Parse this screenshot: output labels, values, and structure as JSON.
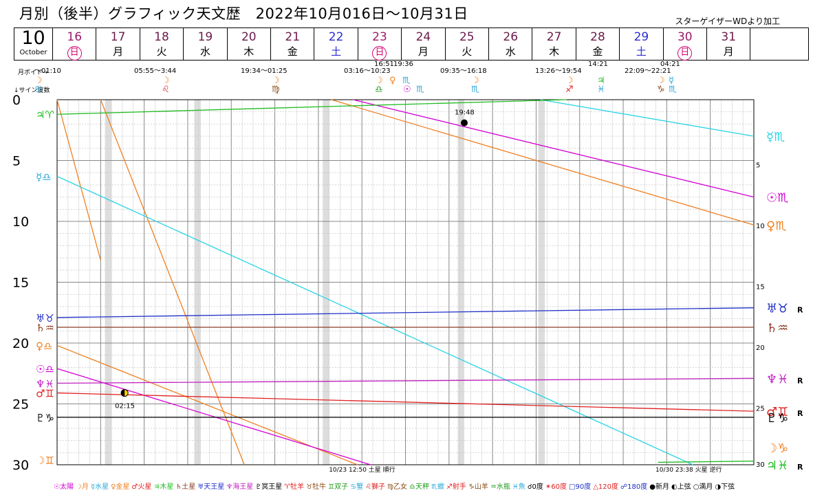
{
  "title": "月別（後半）グラフィック天文歴　2022年10月016日～10月31日",
  "credit": "スターゲイザーWDより加工",
  "header": {
    "month": "10",
    "month_name": "October",
    "days": [
      {
        "d": "16",
        "w": "日",
        "type": "sun"
      },
      {
        "d": "17",
        "w": "月",
        "type": "wd"
      },
      {
        "d": "18",
        "w": "火",
        "type": "wd"
      },
      {
        "d": "19",
        "w": "水",
        "type": "wd"
      },
      {
        "d": "20",
        "w": "木",
        "type": "wd"
      },
      {
        "d": "21",
        "w": "金",
        "type": "wd"
      },
      {
        "d": "22",
        "w": "土",
        "type": "sat"
      },
      {
        "d": "23",
        "w": "日",
        "type": "sun"
      },
      {
        "d": "24",
        "w": "月",
        "type": "wd"
      },
      {
        "d": "25",
        "w": "火",
        "type": "wd"
      },
      {
        "d": "26",
        "w": "水",
        "type": "wd"
      },
      {
        "d": "27",
        "w": "木",
        "type": "wd"
      },
      {
        "d": "28",
        "w": "金",
        "type": "wd"
      },
      {
        "d": "29",
        "w": "土",
        "type": "sat"
      },
      {
        "d": "30",
        "w": "日",
        "type": "sun"
      },
      {
        "d": "31",
        "w": "月",
        "type": "wd"
      }
    ]
  },
  "voids": {
    "label_void": "月ボイド→",
    "label_sign": "↓サイン度数",
    "items": [
      "～01:10",
      "05:55～3:44",
      "19:34～01:25",
      "03:16～10:23",
      "16:51",
      "19:36",
      "09:35～16:18",
      "13:26～19:54",
      "14:21",
      "22:09～22:21",
      "04:21"
    ]
  },
  "ingress_glyphs": [
    {
      "g": "☽",
      "c": "#f08020"
    },
    {
      "g": "♋",
      "c": "#2aa7d8"
    },
    {
      "g": "☽",
      "c": "#f08020"
    },
    {
      "g": "♌",
      "c": "#d33"
    },
    {
      "g": "☽",
      "c": "#f08020"
    },
    {
      "g": "♍",
      "c": "#8a4a12"
    },
    {
      "g": "☽",
      "c": "#f08020"
    },
    {
      "g": "♎",
      "c": "#1a9a1a"
    },
    {
      "g": "♀",
      "c": "#f08020"
    },
    {
      "g": "♏",
      "c": "#2aa7d8"
    },
    {
      "g": "☉",
      "c": "#d400d4"
    },
    {
      "g": "♏",
      "c": "#2aa7d8"
    },
    {
      "g": "☽",
      "c": "#f08020"
    },
    {
      "g": "♏",
      "c": "#2aa7d8"
    },
    {
      "g": "☽",
      "c": "#f08020"
    },
    {
      "g": "♐",
      "c": "#e02020"
    },
    {
      "g": "♃",
      "c": "#22bb22"
    },
    {
      "g": "♓",
      "c": "#2aa7d8"
    },
    {
      "g": "☽",
      "c": "#f08020"
    },
    {
      "g": "♑",
      "c": "#8a4a12"
    },
    {
      "g": "☿",
      "c": "#2aa7d8"
    },
    {
      "g": "♏",
      "c": "#2aa7d8"
    }
  ],
  "chart_data": {
    "type": "line",
    "x_range_days": [
      16,
      32
    ],
    "y_range_degrees": [
      0,
      30
    ],
    "y_ticks": [
      0,
      5,
      10,
      15,
      20,
      25,
      30
    ],
    "bodies": [
      {
        "name": "月",
        "glyph": "☽",
        "color": "#f08020",
        "segments": [
          [
            [
              16.0,
              0
            ],
            [
              17.0,
              13.2
            ]
          ],
          [
            [
              17.0,
              0
            ],
            [
              20.3,
              30
            ]
          ]
        ]
      },
      {
        "name": "水星",
        "glyph": "☿",
        "color": "#29d4e6",
        "segments": [
          [
            [
              16.0,
              6.3
            ],
            [
              30.6,
              30
            ]
          ],
          [
            [
              27.1,
              0
            ],
            [
              32.0,
              3.0
            ]
          ]
        ]
      },
      {
        "name": "金星",
        "glyph": "♀",
        "color": "#f08020",
        "segments": [
          [
            [
              16.0,
              20.2
            ],
            [
              22.9,
              30
            ]
          ],
          [
            [
              22.3,
              0
            ],
            [
              32.0,
              10.3
            ]
          ]
        ]
      },
      {
        "name": "太陽",
        "glyph": "☉",
        "color": "#d400d4",
        "segments": [
          [
            [
              16.0,
              22.1
            ],
            [
              23.2,
              30
            ]
          ],
          [
            [
              22.8,
              0
            ],
            [
              32.0,
              8.0
            ]
          ]
        ]
      },
      {
        "name": "火星",
        "glyph": "♂",
        "color": "#e02020",
        "segments": [
          [
            [
              16.0,
              24.1
            ],
            [
              32.0,
              25.6
            ]
          ]
        ]
      },
      {
        "name": "木星",
        "glyph": "♃",
        "color": "#22bb22",
        "segments": [
          [
            [
              16.0,
              1.2
            ],
            [
              27.7,
              0
            ]
          ],
          [
            [
              29.8,
              29.8
            ],
            [
              32.0,
              29.7
            ]
          ]
        ]
      },
      {
        "name": "土星",
        "glyph": "♄",
        "color": "#8a3a20",
        "segments": [
          [
            [
              16.0,
              18.7
            ],
            [
              32.0,
              18.7
            ]
          ]
        ]
      },
      {
        "name": "天王星",
        "glyph": "♅",
        "color": "#2030c8",
        "segments": [
          [
            [
              16.0,
              17.9
            ],
            [
              32.0,
              17.1
            ]
          ]
        ]
      },
      {
        "name": "海王星",
        "glyph": "♆",
        "color": "#c020c0",
        "segments": [
          [
            [
              16.0,
              23.3
            ],
            [
              32.0,
              22.9
            ]
          ]
        ]
      },
      {
        "name": "冥王星",
        "glyph": "♇",
        "color": "#000000",
        "segments": [
          [
            [
              16.0,
              26.1
            ],
            [
              32.0,
              26.1
            ]
          ]
        ]
      }
    ],
    "events": [
      {
        "type": "新月",
        "day": 25.35,
        "deg": 1.9,
        "label": "19:48"
      },
      {
        "type": "下弦",
        "day": 17.55,
        "deg": 24.1,
        "label": "02:15"
      }
    ],
    "bottom_notes": [
      {
        "day": 23.0,
        "text": "10/23 12:50 土星 順行"
      },
      {
        "day": 30.5,
        "text": "10/30 23:38 火星 逆行"
      }
    ],
    "left_labels": [
      {
        "deg": 1.2,
        "t": "♃♈",
        "c": "#22bb22"
      },
      {
        "deg": 6.3,
        "t": "☿♎",
        "c": "#29a8d8"
      },
      {
        "deg": 17.9,
        "t": "♅♉",
        "c": "#2030c8"
      },
      {
        "deg": 18.7,
        "t": "♄♒",
        "c": "#8a3a20"
      },
      {
        "deg": 20.2,
        "t": "♀♎",
        "c": "#f08020"
      },
      {
        "deg": 22.1,
        "t": "☉♎",
        "c": "#d400d4"
      },
      {
        "deg": 23.3,
        "t": "♆♓",
        "c": "#c020c0"
      },
      {
        "deg": 24.1,
        "t": "♂♊",
        "c": "#e02020"
      },
      {
        "deg": 26.1,
        "t": "♇♑",
        "c": "#000000"
      },
      {
        "deg": 29.6,
        "t": "☽♊",
        "c": "#f08020"
      }
    ],
    "right_labels": [
      {
        "deg": 3.0,
        "t": "☿♏",
        "c": "#29d4e6",
        "r": ""
      },
      {
        "deg": 8.0,
        "t": "☉♏",
        "c": "#d400d4",
        "r": ""
      },
      {
        "deg": 10.3,
        "t": "♀♏",
        "c": "#f08020",
        "r": ""
      },
      {
        "deg": 17.1,
        "t": "♅♉",
        "c": "#2030c8",
        "r": "R"
      },
      {
        "deg": 18.7,
        "t": "♄♒",
        "c": "#8a3a20",
        "r": ""
      },
      {
        "deg": 22.9,
        "t": "♆♓",
        "c": "#c020c0",
        "r": "R"
      },
      {
        "deg": 25.6,
        "t": "♂♊",
        "c": "#e02020",
        "r": "R"
      },
      {
        "deg": 26.1,
        "t": "♇♑",
        "c": "#000000",
        "r": ""
      },
      {
        "deg": 28.6,
        "t": "☽♑",
        "c": "#f08020",
        "r": ""
      },
      {
        "deg": 30.0,
        "t": "♃♓",
        "c": "#22bb22",
        "r": "R"
      }
    ],
    "void_shading_days": [
      [
        17.1,
        17.25
      ],
      [
        19.15,
        19.3
      ],
      [
        22.1,
        22.25
      ],
      [
        25.2,
        25.35
      ],
      [
        27.05,
        27.2
      ]
    ]
  },
  "legend": [
    {
      "t": "☉太陽",
      "c": "#d400d4"
    },
    {
      "t": "☽月",
      "c": "#f08020"
    },
    {
      "t": "☿水星",
      "c": "#29a8d8"
    },
    {
      "t": "♀金星",
      "c": "#f08020"
    },
    {
      "t": "♂火星",
      "c": "#e02020"
    },
    {
      "t": "♃木星",
      "c": "#22bb22"
    },
    {
      "t": "♄土星",
      "c": "#8a3a20"
    },
    {
      "t": "♅天王星",
      "c": "#2030c8"
    },
    {
      "t": "♆海王星",
      "c": "#c020c0"
    },
    {
      "t": "♇冥王星",
      "c": "#000"
    },
    {
      "t": "♈牡羊",
      "c": "#e02020"
    },
    {
      "t": "♉牡牛",
      "c": "#8a4a12"
    },
    {
      "t": "♊双子",
      "c": "#1a9a1a"
    },
    {
      "t": "♋蟹",
      "c": "#2aa7d8"
    },
    {
      "t": "♌獅子",
      "c": "#e02020"
    },
    {
      "t": "♍乙女",
      "c": "#8a4a12"
    },
    {
      "t": "♎天秤",
      "c": "#1a9a1a"
    },
    {
      "t": "♏蠍",
      "c": "#2aa7d8"
    },
    {
      "t": "♐射手",
      "c": "#e02020"
    },
    {
      "t": "♑山羊",
      "c": "#8a4a12"
    },
    {
      "t": "♒水瓶",
      "c": "#1a9a1a"
    },
    {
      "t": "♓魚",
      "c": "#2aa7d8"
    },
    {
      "t": "☌0度",
      "c": "#000"
    },
    {
      "t": "✶60度",
      "c": "#e02020"
    },
    {
      "t": "□90度",
      "c": "#2030c8"
    },
    {
      "t": "△120度",
      "c": "#e02020"
    },
    {
      "t": "☍180度",
      "c": "#2030c8"
    },
    {
      "t": "●新月",
      "c": "#000"
    },
    {
      "t": "◐上弦",
      "c": "#000"
    },
    {
      "t": "○満月",
      "c": "#000"
    },
    {
      "t": "◑下弦",
      "c": "#000"
    }
  ]
}
